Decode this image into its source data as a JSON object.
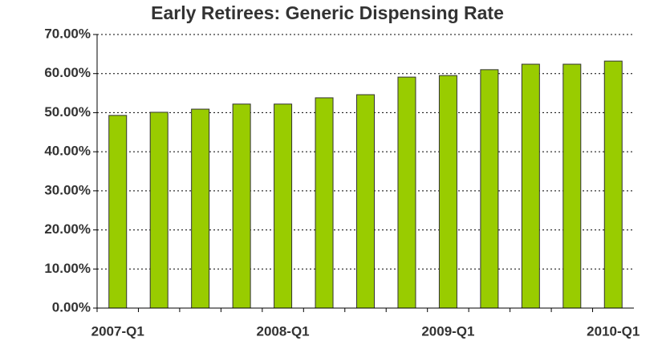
{
  "chart_data": {
    "type": "bar",
    "title": "Early Retirees: Generic Dispensing Rate",
    "categories": [
      "2007-Q1",
      null,
      null,
      null,
      "2008-Q1",
      null,
      null,
      null,
      "2009-Q1",
      null,
      null,
      null,
      "2010-Q1"
    ],
    "values": [
      49.3,
      50.1,
      50.9,
      52.2,
      52.2,
      53.8,
      54.6,
      59.1,
      59.5,
      61.0,
      62.4,
      62.4,
      63.2
    ],
    "color": "#99cc00",
    "ylim": [
      0,
      70
    ],
    "yticks": [
      {
        "value": 0,
        "label": "0.00%"
      },
      {
        "value": 10,
        "label": "10.00%"
      },
      {
        "value": 20,
        "label": "20.00%"
      },
      {
        "value": 30,
        "label": "30.00%"
      },
      {
        "value": 40,
        "label": "40.00%"
      },
      {
        "value": 50,
        "label": "50.00%"
      },
      {
        "value": 60,
        "label": "60.00%"
      },
      {
        "value": 70,
        "label": "70.00%"
      }
    ],
    "grid": true
  }
}
